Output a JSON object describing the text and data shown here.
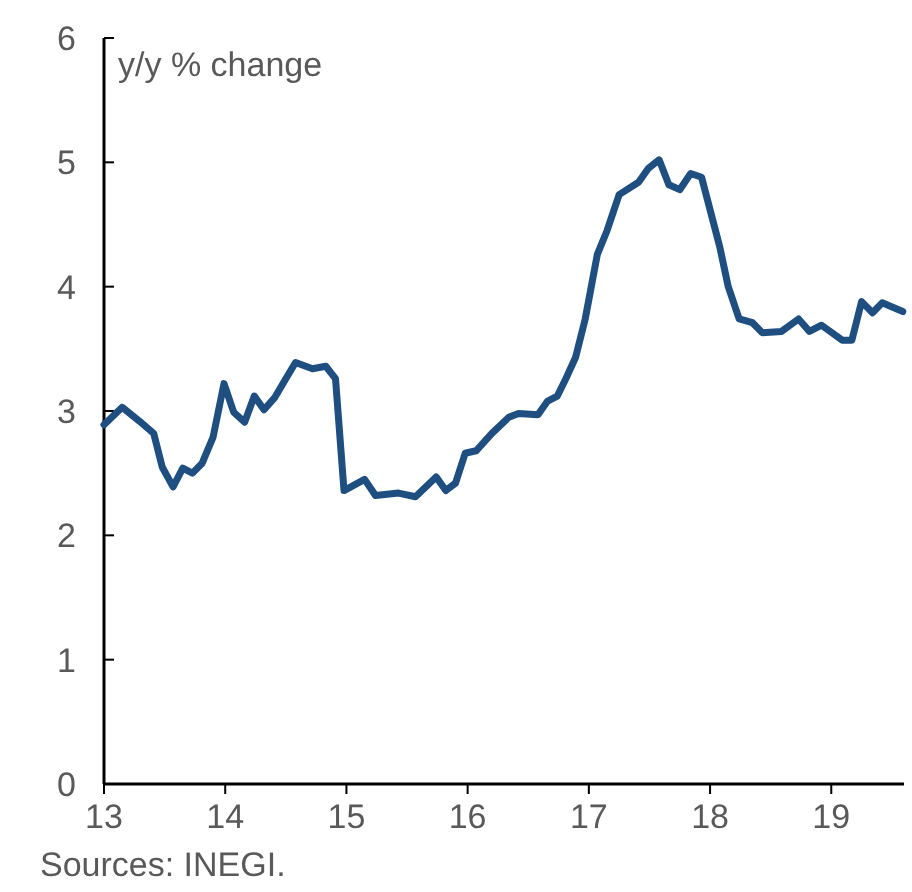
{
  "chart_data": {
    "type": "line",
    "ylabel": "y/y % change",
    "annotations": [
      "Sources: INEGI."
    ],
    "x": [
      13.0,
      13.15,
      13.29,
      13.41,
      13.48,
      13.57,
      13.65,
      13.73,
      13.81,
      13.9,
      13.99,
      14.07,
      14.16,
      14.24,
      14.32,
      14.41,
      14.5,
      14.58,
      14.72,
      14.83,
      14.91,
      14.98,
      15.15,
      15.24,
      15.43,
      15.57,
      15.74,
      15.82,
      15.9,
      15.98,
      16.07,
      16.2,
      16.34,
      16.42,
      16.58,
      16.66,
      16.74,
      16.81,
      16.89,
      16.97,
      17.07,
      17.15,
      17.25,
      17.41,
      17.49,
      17.58,
      17.66,
      17.75,
      17.84,
      17.93,
      18.08,
      18.15,
      18.24,
      18.35,
      18.43,
      18.59,
      18.73,
      18.82,
      18.92,
      19.09,
      19.17,
      19.25,
      19.34,
      19.42,
      19.59
    ],
    "series": [
      {
        "color": "#1f4e80",
        "values": [
          2.89,
          3.03,
          2.92,
          2.82,
          2.55,
          2.39,
          2.54,
          2.5,
          2.58,
          2.79,
          3.22,
          2.99,
          2.91,
          3.12,
          3.01,
          3.11,
          3.26,
          3.39,
          3.34,
          3.36,
          3.26,
          2.36,
          2.45,
          2.32,
          2.34,
          2.31,
          2.47,
          2.36,
          2.42,
          2.66,
          2.68,
          2.82,
          2.95,
          2.98,
          2.97,
          3.08,
          3.12,
          3.26,
          3.43,
          3.74,
          4.26,
          4.45,
          4.74,
          4.84,
          4.95,
          5.02,
          4.82,
          4.78,
          4.91,
          4.88,
          4.32,
          4.0,
          3.74,
          3.71,
          3.63,
          3.64,
          3.74,
          3.64,
          3.69,
          3.57,
          3.57,
          3.88,
          3.79,
          3.87,
          3.8
        ]
      }
    ],
    "xlim": [
      13,
      19.6
    ],
    "xticks": [
      13,
      14,
      15,
      16,
      17,
      18,
      19
    ],
    "ylim": [
      0,
      6
    ],
    "yticks": [
      0,
      1,
      2,
      3,
      4,
      5,
      6
    ],
    "grid": false,
    "line_style": "solid",
    "marker": "none"
  }
}
